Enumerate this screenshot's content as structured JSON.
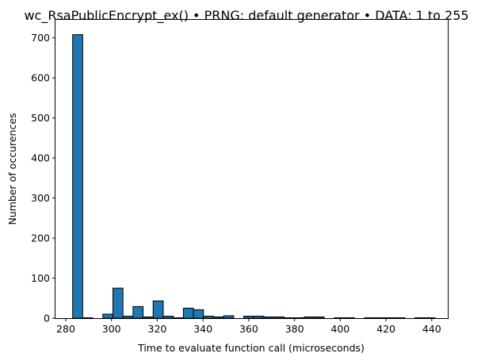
{
  "chart_data": {
    "type": "bar",
    "title": "wc_RsaPublicEncrypt_ex() • PRNG: default generator • DATA: 1 to 255",
    "xlabel": "Time to evaluate function call (microseconds)",
    "ylabel": "Number of occurences",
    "xlim": [
      275.5,
      447
    ],
    "ylim": [
      0,
      745
    ],
    "xticks": [
      280,
      300,
      320,
      340,
      360,
      380,
      400,
      420,
      440
    ],
    "yticks": [
      0,
      100,
      200,
      300,
      400,
      500,
      600,
      700
    ],
    "bin_width": 4.4,
    "bins": [
      {
        "x0": 283.0,
        "count": 708
      },
      {
        "x0": 287.4,
        "count": 1
      },
      {
        "x0": 291.8,
        "count": 0
      },
      {
        "x0": 296.2,
        "count": 10
      },
      {
        "x0": 300.6,
        "count": 75
      },
      {
        "x0": 305.0,
        "count": 5
      },
      {
        "x0": 309.4,
        "count": 29
      },
      {
        "x0": 313.8,
        "count": 3
      },
      {
        "x0": 318.2,
        "count": 43
      },
      {
        "x0": 322.6,
        "count": 5
      },
      {
        "x0": 327.0,
        "count": 1
      },
      {
        "x0": 331.4,
        "count": 25
      },
      {
        "x0": 335.8,
        "count": 21
      },
      {
        "x0": 340.2,
        "count": 5
      },
      {
        "x0": 344.6,
        "count": 3
      },
      {
        "x0": 349.0,
        "count": 6
      },
      {
        "x0": 353.4,
        "count": 0
      },
      {
        "x0": 357.8,
        "count": 5
      },
      {
        "x0": 362.2,
        "count": 5
      },
      {
        "x0": 366.6,
        "count": 3
      },
      {
        "x0": 371.0,
        "count": 3
      },
      {
        "x0": 375.4,
        "count": 1
      },
      {
        "x0": 379.8,
        "count": 1
      },
      {
        "x0": 384.2,
        "count": 3
      },
      {
        "x0": 388.6,
        "count": 3
      },
      {
        "x0": 393.0,
        "count": 0
      },
      {
        "x0": 397.4,
        "count": 1
      },
      {
        "x0": 401.8,
        "count": 1
      },
      {
        "x0": 406.2,
        "count": 0
      },
      {
        "x0": 410.6,
        "count": 1
      },
      {
        "x0": 415.0,
        "count": 1
      },
      {
        "x0": 419.4,
        "count": 1
      },
      {
        "x0": 423.8,
        "count": 1
      },
      {
        "x0": 428.2,
        "count": 0
      },
      {
        "x0": 432.6,
        "count": 1
      },
      {
        "x0": 437.0,
        "count": 1
      }
    ],
    "bar_color": "#1f77b4",
    "edge_color": "#000000",
    "grid": false,
    "legend": "none"
  }
}
